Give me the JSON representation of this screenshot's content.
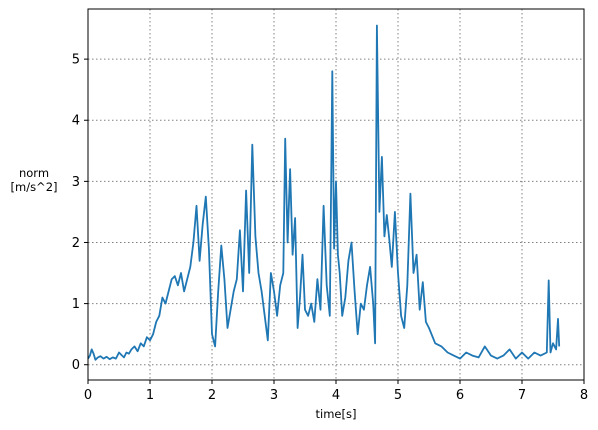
{
  "chart_data": {
    "type": "line",
    "title": "",
    "xlabel": "time[s]",
    "ylabel_lines": [
      "norm",
      "[m/s^2]"
    ],
    "xlim": [
      0,
      8
    ],
    "ylim": [
      -0.25,
      5.82
    ],
    "xticks": [
      0,
      1,
      2,
      3,
      4,
      5,
      6,
      7,
      8
    ],
    "yticks": [
      0,
      1,
      2,
      3,
      4,
      5
    ],
    "grid": true,
    "grid_style": "dotted",
    "legend": "none",
    "series": [
      {
        "color": "#1f77b4",
        "x": [
          0.0,
          0.03,
          0.06,
          0.09,
          0.12,
          0.16,
          0.2,
          0.25,
          0.3,
          0.35,
          0.4,
          0.45,
          0.5,
          0.55,
          0.58,
          0.62,
          0.66,
          0.7,
          0.75,
          0.8,
          0.85,
          0.9,
          0.95,
          1.0,
          1.05,
          1.1,
          1.15,
          1.2,
          1.25,
          1.3,
          1.35,
          1.4,
          1.45,
          1.5,
          1.55,
          1.6,
          1.65,
          1.7,
          1.75,
          1.8,
          1.85,
          1.9,
          1.95,
          2.0,
          2.05,
          2.1,
          2.15,
          2.2,
          2.25,
          2.3,
          2.35,
          2.4,
          2.45,
          2.5,
          2.55,
          2.6,
          2.65,
          2.7,
          2.75,
          2.8,
          2.85,
          2.9,
          2.95,
          3.0,
          3.05,
          3.1,
          3.15,
          3.18,
          3.22,
          3.26,
          3.3,
          3.34,
          3.38,
          3.42,
          3.46,
          3.5,
          3.55,
          3.6,
          3.65,
          3.7,
          3.75,
          3.8,
          3.85,
          3.9,
          3.94,
          3.97,
          4.0,
          4.03,
          4.06,
          4.1,
          4.15,
          4.2,
          4.25,
          4.3,
          4.35,
          4.4,
          4.45,
          4.5,
          4.55,
          4.6,
          4.63,
          4.66,
          4.7,
          4.74,
          4.78,
          4.82,
          4.86,
          4.9,
          4.95,
          5.0,
          5.05,
          5.1,
          5.15,
          5.2,
          5.25,
          5.3,
          5.35,
          5.4,
          5.45,
          5.5,
          5.6,
          5.7,
          5.8,
          5.9,
          6.0,
          6.1,
          6.2,
          6.3,
          6.4,
          6.5,
          6.6,
          6.7,
          6.8,
          6.9,
          7.0,
          7.1,
          7.2,
          7.3,
          7.4,
          7.43,
          7.46,
          7.5,
          7.55,
          7.58,
          7.6
        ],
        "y": [
          0.1,
          0.15,
          0.25,
          0.18,
          0.08,
          0.12,
          0.14,
          0.1,
          0.13,
          0.09,
          0.12,
          0.1,
          0.2,
          0.15,
          0.12,
          0.2,
          0.18,
          0.25,
          0.3,
          0.22,
          0.35,
          0.3,
          0.45,
          0.4,
          0.5,
          0.7,
          0.8,
          1.1,
          1.0,
          1.2,
          1.4,
          1.45,
          1.3,
          1.5,
          1.2,
          1.4,
          1.6,
          2.0,
          2.6,
          1.7,
          2.3,
          2.75,
          1.9,
          0.5,
          0.3,
          1.2,
          1.95,
          1.4,
          0.6,
          0.9,
          1.2,
          1.4,
          2.2,
          1.2,
          2.85,
          1.5,
          3.6,
          2.1,
          1.5,
          1.2,
          0.8,
          0.4,
          1.5,
          1.2,
          0.8,
          1.3,
          1.5,
          3.7,
          2.0,
          3.2,
          1.8,
          2.4,
          0.6,
          1.1,
          1.8,
          0.9,
          0.8,
          1.0,
          0.7,
          1.4,
          0.9,
          2.6,
          1.3,
          0.8,
          4.8,
          1.9,
          3.0,
          1.8,
          1.5,
          0.8,
          1.1,
          1.7,
          2.0,
          1.2,
          0.5,
          1.0,
          0.9,
          1.3,
          1.6,
          1.0,
          0.35,
          5.55,
          2.5,
          3.4,
          2.1,
          2.45,
          2.05,
          1.6,
          2.5,
          1.5,
          0.8,
          0.6,
          1.3,
          2.8,
          1.5,
          1.8,
          0.9,
          1.35,
          0.7,
          0.6,
          0.35,
          0.3,
          0.2,
          0.15,
          0.1,
          0.2,
          0.15,
          0.12,
          0.3,
          0.15,
          0.1,
          0.15,
          0.25,
          0.1,
          0.2,
          0.1,
          0.2,
          0.15,
          0.2,
          1.38,
          0.2,
          0.35,
          0.25,
          0.75,
          0.3
        ]
      }
    ]
  }
}
